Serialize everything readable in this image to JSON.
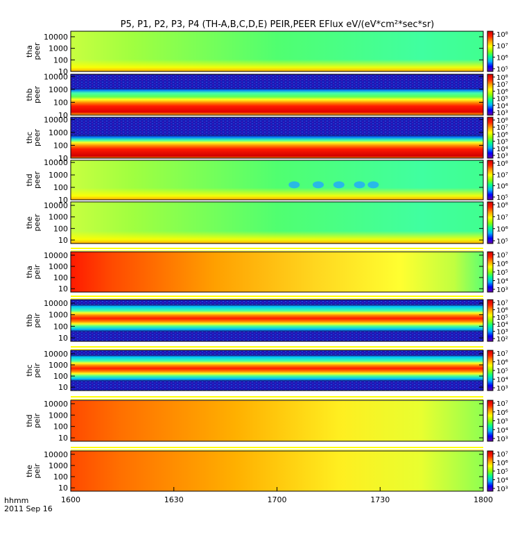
{
  "chart_data": {
    "type": "heatmap",
    "title": "P5, P1, P2, P3, P4 (TH-A,B,C,D,E) PEIR,PEER EFlux eV/(eV*cm²*sec*sr)",
    "x_axis": {
      "label": "hhmm",
      "sublabel": "2011 Sep 16",
      "range": [
        "1600",
        "1800"
      ],
      "tick_labels": [
        "1600",
        "1630",
        "1700",
        "1730",
        "1800"
      ]
    },
    "colormap": [
      "#6a00aa",
      "#0000ff",
      "#00b4ff",
      "#00ff90",
      "#90ff00",
      "#ffff00",
      "#ffa000",
      "#ff2000",
      "#d00000"
    ],
    "panels": [
      {
        "ylabel": [
          "tha",
          "peer"
        ],
        "y_scale": "log",
        "y_range": [
          10,
          30000
        ],
        "y_ticks": [
          "10000",
          "1000",
          "100",
          "10"
        ],
        "color_scale": "log",
        "color_range": [
          "10⁵",
          "10⁸"
        ],
        "colorbar_ticks": [
          "10⁸",
          "10⁷",
          "10⁶",
          "10⁵"
        ],
        "background": "green spectrum, yellow near 10 eV"
      },
      {
        "ylabel": [
          "thb",
          "peer"
        ],
        "y_scale": "log",
        "y_range": [
          10,
          15000
        ],
        "y_ticks": [
          "10000",
          "1000",
          "100",
          "10"
        ],
        "color_scale": "log",
        "color_range": [
          "10³",
          "10⁸"
        ],
        "colorbar_ticks": [
          "10⁸",
          "10⁷",
          "10⁶",
          "10⁵",
          "10⁴",
          "10³"
        ],
        "background": "red band at low energy, noisy blue above 2000 eV"
      },
      {
        "ylabel": [
          "thc",
          "peer"
        ],
        "y_scale": "log",
        "y_range": [
          10,
          15000
        ],
        "y_ticks": [
          "10000",
          "1000",
          "100",
          "10"
        ],
        "color_scale": "log",
        "color_range": [
          "10³",
          "10⁸"
        ],
        "colorbar_ticks": [
          "10⁸",
          "10⁷",
          "10⁶",
          "10⁵",
          "10⁴",
          "10³"
        ],
        "background": "red band at low energy, noisy blue above 1000 eV"
      },
      {
        "ylabel": [
          "thd",
          "peer"
        ],
        "y_scale": "log",
        "y_range": [
          10,
          15000
        ],
        "y_ticks": [
          "10000",
          "1000",
          "100",
          "10"
        ],
        "color_scale": "log",
        "color_range": [
          "10⁴",
          "10⁸"
        ],
        "colorbar_ticks": [
          "10⁸",
          "10⁷",
          "10⁶",
          "10⁵"
        ],
        "background": "green spectrum with blue patches 1705-1730"
      },
      {
        "ylabel": [
          "the",
          "peer"
        ],
        "y_scale": "log",
        "y_range": [
          5,
          20000
        ],
        "y_ticks": [
          "10000",
          "1000",
          "100",
          "10"
        ],
        "color_scale": "log",
        "color_range": [
          "10⁴",
          "10⁸"
        ],
        "colorbar_ticks": [
          "10⁸",
          "10⁷",
          "10⁶",
          "10⁵"
        ],
        "background": "green spectrum"
      },
      {
        "ylabel": [
          "tha",
          "peir"
        ],
        "y_scale": "log",
        "y_range": [
          5,
          20000
        ],
        "y_ticks": [
          "10000",
          "1000",
          "100",
          "10"
        ],
        "color_scale": "log",
        "color_range": [
          "10²",
          "10⁷"
        ],
        "colorbar_ticks": [
          "10⁷",
          "10⁶",
          "10⁵",
          "10⁴",
          "10³"
        ],
        "background": "red/orange fading to yellow and green"
      },
      {
        "ylabel": [
          "thb",
          "peir"
        ],
        "y_scale": "log",
        "y_range": [
          5,
          20000
        ],
        "y_ticks": [
          "10000",
          "1000",
          "100",
          "10"
        ],
        "color_scale": "log",
        "color_range": [
          "10²",
          "10⁷"
        ],
        "colorbar_ticks": [
          "10⁷",
          "10⁶",
          "10⁵",
          "10⁴",
          "10³",
          "10²"
        ],
        "background": "red band near 800 eV, noisy blue"
      },
      {
        "ylabel": [
          "thc",
          "peir"
        ],
        "y_scale": "log",
        "y_range": [
          5,
          20000
        ],
        "y_ticks": [
          "10000",
          "1000",
          "100",
          "10"
        ],
        "color_scale": "log",
        "color_range": [
          "10²",
          "10⁷"
        ],
        "colorbar_ticks": [
          "10⁷",
          "10⁶",
          "10⁵",
          "10⁴",
          "10³"
        ],
        "background": "red band near 1000 eV, noisy blue, shift at 1715"
      },
      {
        "ylabel": [
          "thd",
          "peir"
        ],
        "y_scale": "log",
        "y_range": [
          5,
          20000
        ],
        "y_ticks": [
          "10000",
          "1000",
          "100",
          "10"
        ],
        "color_scale": "log",
        "color_range": [
          "10²",
          "10⁷"
        ],
        "colorbar_ticks": [
          "10⁷",
          "10⁶",
          "10⁵",
          "10⁴",
          "10³"
        ],
        "background": "orange fading to yellow and green"
      },
      {
        "ylabel": [
          "the",
          "peir"
        ],
        "y_scale": "log",
        "y_range": [
          5,
          20000
        ],
        "y_ticks": [
          "10000",
          "1000",
          "100",
          "10"
        ],
        "color_scale": "log",
        "color_range": [
          "10²",
          "10⁷"
        ],
        "colorbar_ticks": [
          "10⁷",
          "10⁶",
          "10⁵",
          "10⁴",
          "10³"
        ],
        "background": "orange fading to yellow and green"
      }
    ]
  }
}
